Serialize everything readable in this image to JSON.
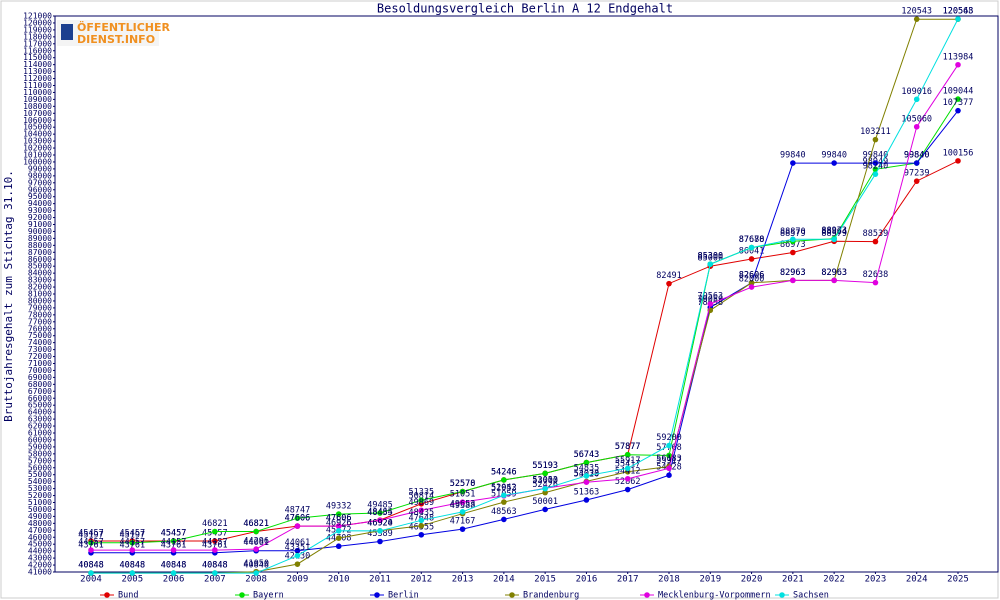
{
  "logo": [
    "ÖFFENTLICHER",
    "DIENST.INFO"
  ],
  "chart_data": {
    "type": "line",
    "title": "Besoldungsvergleich Berlin A 12 Endgehalt",
    "y_label": "Bruttojahresgehalt zum Stichtag 31.10.",
    "categories": [
      "2004",
      "2005",
      "2006",
      "2007",
      "2008",
      "2009",
      "2010",
      "2011",
      "2012",
      "2013",
      "2014",
      "2015",
      "2016",
      "2017",
      "2018",
      "2019",
      "2020",
      "2021",
      "2022",
      "2023",
      "2024",
      "2025"
    ],
    "series": [
      {
        "name": "Bund",
        "color": "#e00000",
        "values": [
          45457,
          45457,
          45457,
          45457,
          46821,
          47606,
          47606,
          48464,
          50814,
          52570,
          54246,
          55193,
          56743,
          57877,
          82491,
          85000,
          86041,
          86973,
          88579,
          88539,
          97239,
          100156
        ]
      },
      {
        "name": "Bayern",
        "color": "#00e000",
        "values": [
          45197,
          45197,
          45457,
          46821,
          46821,
          48747,
          49332,
          49485,
          51335,
          52578,
          54246,
          55193,
          56743,
          57877,
          57768,
          85300,
          87678,
          88579,
          88973,
          98949,
          99840,
          109044
        ]
      },
      {
        "name": "Berlin",
        "color": "#0000e0",
        "values": [
          43761,
          43761,
          43761,
          43761,
          44061,
          44061,
          44708,
          45389,
          46355,
          47167,
          48563,
          50001,
          51363,
          52862,
          54928,
          79059,
          82606,
          99840,
          99840,
          99840,
          99840,
          107377
        ]
      },
      {
        "name": "Brandenburg",
        "color": "#808000",
        "values": [
          40848,
          40848,
          40848,
          40848,
          41050,
          42130,
          45872,
          46924,
          47648,
          49388,
          51059,
          52426,
          54033,
          55417,
          56183,
          78658,
          82606,
          82963,
          82963,
          103211,
          120543,
          120543
        ]
      },
      {
        "name": "Mecklenburg-Vorpommern",
        "color": "#e000e0",
        "values": [
          44157,
          44157,
          44157,
          44157,
          44296,
          47606,
          47606,
          48435,
          49869,
          51051,
          51953,
          53053,
          53920,
          54412,
          55917,
          79563,
          82000,
          82963,
          82963,
          82638,
          105060,
          113984
        ]
      },
      {
        "name": "Sachsen",
        "color": "#00e0e0",
        "values": [
          40848,
          40848,
          40848,
          40848,
          40848,
          43351,
          46926,
          46920,
          48435,
          49653,
          52042,
          53000,
          54835,
          55917,
          59200,
          85300,
          87680,
          88870,
          88864,
          98240,
          109016,
          120568
        ]
      }
    ],
    "ylim": [
      41000,
      121000
    ],
    "yticks": [
      41000,
      42000,
      43000,
      44000,
      45000,
      46000,
      47000,
      48000,
      49000,
      50000,
      51000,
      52000,
      53000,
      54000,
      55000,
      56000,
      57000,
      58000,
      59000,
      60000,
      61000,
      62000,
      63000,
      64000,
      65000,
      66000,
      67000,
      68000,
      69000,
      70000,
      71000,
      72000,
      73000,
      74000,
      75000,
      76000,
      77000,
      78000,
      79000,
      80000,
      81000,
      82000,
      83000,
      84000,
      85000,
      86000,
      87000,
      88000,
      89000,
      90000,
      91000,
      92000,
      93000,
      94000,
      95000,
      96000,
      97000,
      98000,
      99000,
      100000,
      101000,
      102000,
      103000,
      104000,
      105000,
      106000,
      107000,
      108000,
      109000,
      110000,
      111000,
      112000,
      113000,
      114000,
      115000,
      116000,
      117000,
      118000,
      119000,
      120000,
      121000
    ],
    "grid": false
  }
}
